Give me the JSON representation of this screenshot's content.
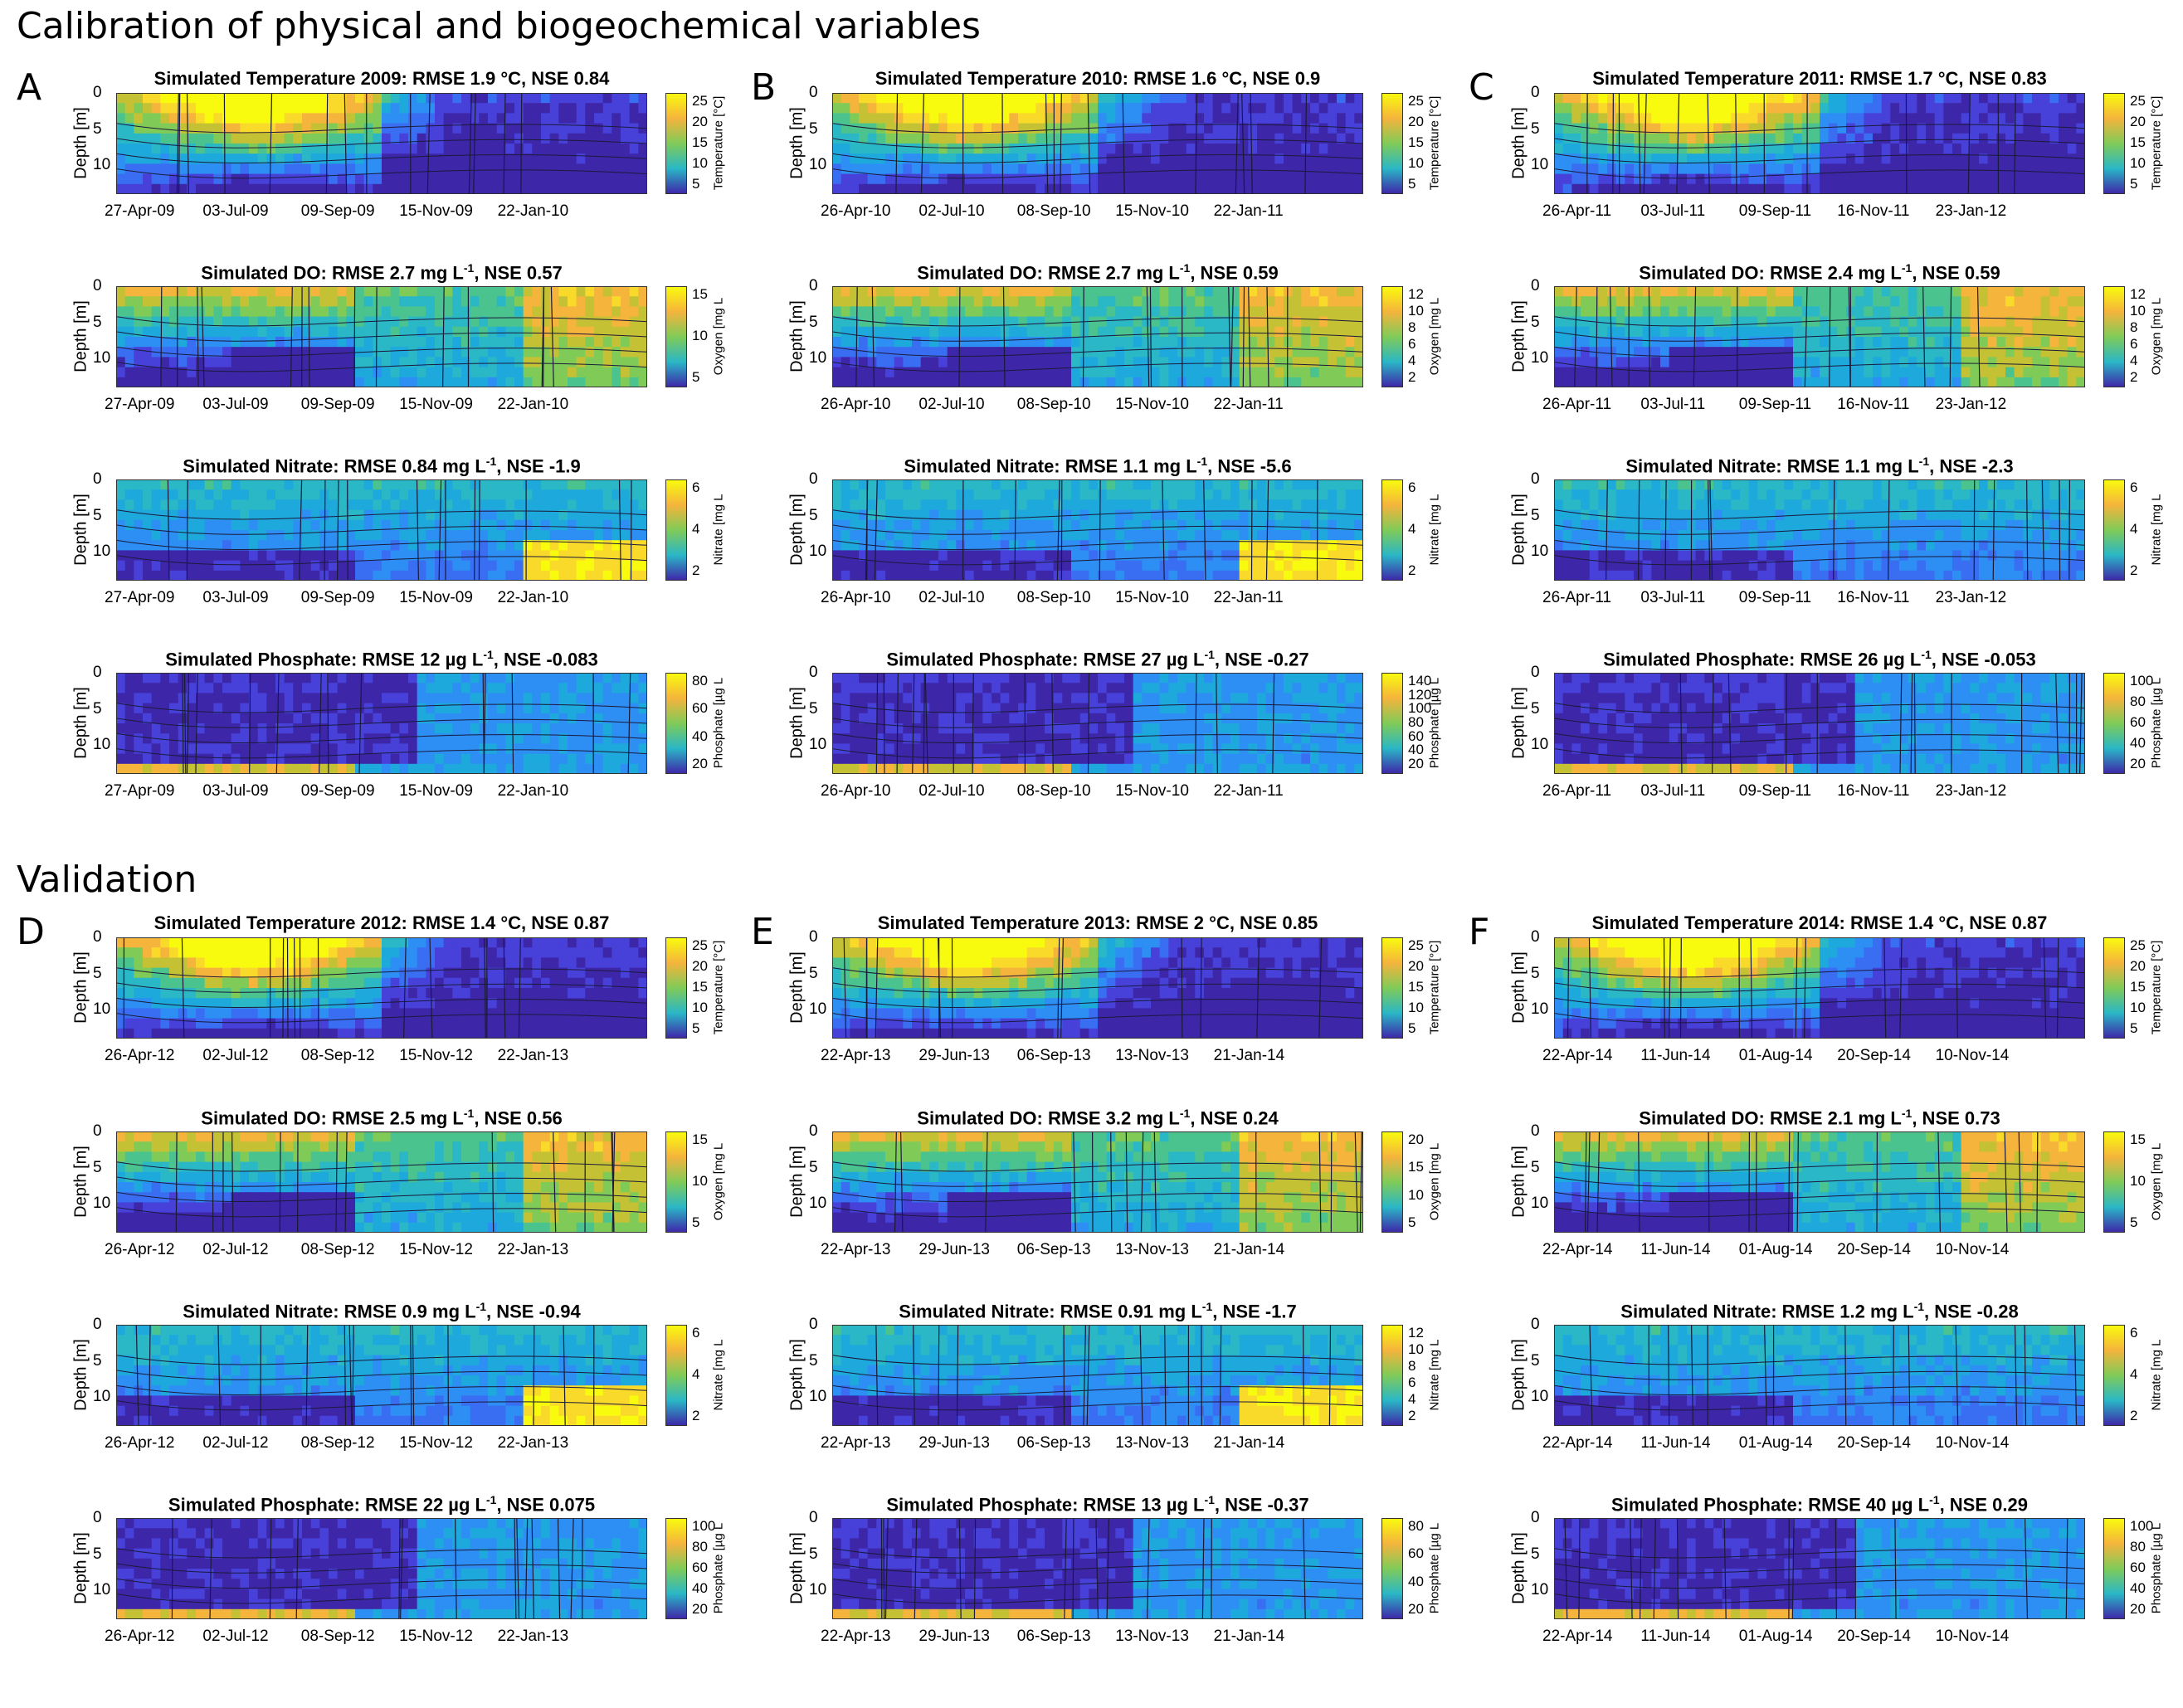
{
  "section_titles": {
    "calibration": "Calibration of physical and biogeochemical variables",
    "validation": "Validation"
  },
  "colors": {
    "low": "#3e26a8",
    "mid": "#2ab7c6",
    "midhigh": "#80cb58",
    "high": "#f5b43c",
    "max": "#f9fb0e"
  },
  "chart_data": [
    {
      "panel": "A",
      "type": "heatmap",
      "year": "2009",
      "ylabel": "Depth [m]",
      "yticks": [
        "0",
        "5",
        "10"
      ],
      "ylim": [
        0,
        14
      ],
      "xticks": [
        "27-Apr-09",
        "03-Jul-09",
        "09-Sep-09",
        "15-Nov-09",
        "22-Jan-10"
      ],
      "subplots": [
        {
          "variable": "Temperature",
          "title": "Simulated Temperature 2009: RMSE 1.9 °C, NSE 0.84",
          "cblabel": "Temperature [°C]",
          "cbticks": [
            "25",
            "20",
            "15",
            "10",
            "5"
          ],
          "profile": "temp"
        },
        {
          "variable": "DO",
          "title_main": "Simulated DO: RMSE 2.7 mg L",
          "title_sup": "-1",
          "title_end": ", NSE 0.57",
          "cblabel": "Oxygen [mg L",
          "cbticks": [
            "15",
            "10",
            "5"
          ],
          "profile": "do"
        },
        {
          "variable": "Nitrate",
          "title_main": "Simulated Nitrate: RMSE 0.84 mg L",
          "title_sup": "-1",
          "title_end": ", NSE -1.9",
          "cblabel": "Nitrate [mg L",
          "cbticks": [
            "6",
            "4",
            "2"
          ],
          "profile": "no3"
        },
        {
          "variable": "Phosphate",
          "title_main": "Simulated Phosphate: RMSE 12 µg L",
          "title_sup": "-1",
          "title_end": ", NSE -0.083",
          "cblabel": "Phosphate [µg L",
          "cbticks": [
            "80",
            "60",
            "40",
            "20"
          ],
          "profile": "po4"
        }
      ]
    },
    {
      "panel": "B",
      "type": "heatmap",
      "year": "2010",
      "ylabel": "Depth [m]",
      "yticks": [
        "0",
        "5",
        "10"
      ],
      "ylim": [
        0,
        14
      ],
      "xticks": [
        "26-Apr-10",
        "02-Jul-10",
        "08-Sep-10",
        "15-Nov-10",
        "22-Jan-11"
      ],
      "subplots": [
        {
          "variable": "Temperature",
          "title": "Simulated Temperature 2010: RMSE 1.6 °C, NSE 0.9",
          "cblabel": "Temperature [°C]",
          "cbticks": [
            "25",
            "20",
            "15",
            "10",
            "5"
          ],
          "profile": "temp"
        },
        {
          "variable": "DO",
          "title_main": "Simulated DO: RMSE 2.7 mg L",
          "title_sup": "-1",
          "title_end": ", NSE 0.59",
          "cblabel": "Oxygen [mg L",
          "cbticks": [
            "12",
            "10",
            "8",
            "6",
            "4",
            "2"
          ],
          "profile": "do"
        },
        {
          "variable": "Nitrate",
          "title_main": "Simulated Nitrate: RMSE 1.1 mg L",
          "title_sup": "-1",
          "title_end": ", NSE -5.6",
          "cblabel": "Nitrate [mg L",
          "cbticks": [
            "6",
            "4",
            "2"
          ],
          "profile": "no3"
        },
        {
          "variable": "Phosphate",
          "title_main": "Simulated Phosphate: RMSE 27 µg L",
          "title_sup": "-1",
          "title_end": ", NSE -0.27",
          "cblabel": "Phosphate [µg L",
          "cbticks": [
            "140",
            "120",
            "100",
            "80",
            "60",
            "40",
            "20"
          ],
          "profile": "po4"
        }
      ]
    },
    {
      "panel": "C",
      "type": "heatmap",
      "year": "2011",
      "ylabel": "Depth [m]",
      "yticks": [
        "0",
        "5",
        "10"
      ],
      "ylim": [
        0,
        14
      ],
      "xticks": [
        "26-Apr-11",
        "03-Jul-11",
        "09-Sep-11",
        "16-Nov-11",
        "23-Jan-12"
      ],
      "subplots": [
        {
          "variable": "Temperature",
          "title": "Simulated Temperature 2011: RMSE 1.7 °C, NSE 0.83",
          "cblabel": "Temperature [°C]",
          "cbticks": [
            "25",
            "20",
            "15",
            "10",
            "5"
          ],
          "profile": "temp"
        },
        {
          "variable": "DO",
          "title_main": "Simulated DO: RMSE 2.4 mg L",
          "title_sup": "-1",
          "title_end": ", NSE 0.59",
          "cblabel": "Oxygen [mg L",
          "cbticks": [
            "12",
            "10",
            "8",
            "6",
            "4",
            "2"
          ],
          "profile": "do"
        },
        {
          "variable": "Nitrate",
          "title_main": "Simulated Nitrate: RMSE 1.1 mg L",
          "title_sup": "-1",
          "title_end": ", NSE -2.3",
          "cblabel": "Nitrate [mg L",
          "cbticks": [
            "6",
            "4",
            "2"
          ],
          "profile": "no3"
        },
        {
          "variable": "Phosphate",
          "title_main": "Simulated Phosphate: RMSE 26 µg L",
          "title_sup": "-1",
          "title_end": ", NSE -0.053",
          "cblabel": "Phosphate [µg L",
          "cbticks": [
            "100",
            "80",
            "60",
            "40",
            "20"
          ],
          "profile": "po4"
        }
      ]
    },
    {
      "panel": "D",
      "type": "heatmap",
      "year": "2012",
      "ylabel": "Depth [m]",
      "yticks": [
        "0",
        "5",
        "10"
      ],
      "ylim": [
        0,
        14
      ],
      "xticks": [
        "26-Apr-12",
        "02-Jul-12",
        "08-Sep-12",
        "15-Nov-12",
        "22-Jan-13"
      ],
      "subplots": [
        {
          "variable": "Temperature",
          "title": "Simulated Temperature 2012: RMSE 1.4 °C, NSE 0.87",
          "cblabel": "Temperature [°C]",
          "cbticks": [
            "25",
            "20",
            "15",
            "10",
            "5"
          ],
          "profile": "temp"
        },
        {
          "variable": "DO",
          "title_main": "Simulated DO: RMSE 2.5 mg L",
          "title_sup": "-1",
          "title_end": ", NSE 0.56",
          "cblabel": "Oxygen [mg L",
          "cbticks": [
            "15",
            "10",
            "5"
          ],
          "profile": "do"
        },
        {
          "variable": "Nitrate",
          "title_main": "Simulated Nitrate: RMSE 0.9 mg L",
          "title_sup": "-1",
          "title_end": ", NSE -0.94",
          "cblabel": "Nitrate [mg L",
          "cbticks": [
            "6",
            "4",
            "2"
          ],
          "profile": "no3"
        },
        {
          "variable": "Phosphate",
          "title_main": "Simulated Phosphate: RMSE 22 µg L",
          "title_sup": "-1",
          "title_end": ", NSE 0.075",
          "cblabel": "Phosphate [µg L",
          "cbticks": [
            "100",
            "80",
            "60",
            "40",
            "20"
          ],
          "profile": "po4"
        }
      ]
    },
    {
      "panel": "E",
      "type": "heatmap",
      "year": "2013",
      "ylabel": "Depth [m]",
      "yticks": [
        "0",
        "5",
        "10"
      ],
      "ylim": [
        0,
        14
      ],
      "xticks": [
        "22-Apr-13",
        "29-Jun-13",
        "06-Sep-13",
        "13-Nov-13",
        "21-Jan-14"
      ],
      "subplots": [
        {
          "variable": "Temperature",
          "title": "Simulated Temperature 2013: RMSE 2 °C, NSE 0.85",
          "cblabel": "Temperature [°C]",
          "cbticks": [
            "25",
            "20",
            "15",
            "10",
            "5"
          ],
          "profile": "temp"
        },
        {
          "variable": "DO",
          "title_main": "Simulated DO: RMSE 3.2 mg L",
          "title_sup": "-1",
          "title_end": ", NSE 0.24",
          "cblabel": "Oxygen [mg L",
          "cbticks": [
            "20",
            "15",
            "10",
            "5"
          ],
          "profile": "do"
        },
        {
          "variable": "Nitrate",
          "title_main": "Simulated Nitrate: RMSE 0.91 mg L",
          "title_sup": "-1",
          "title_end": ", NSE -1.7",
          "cblabel": "Nitrate [mg L",
          "cbticks": [
            "12",
            "10",
            "8",
            "6",
            "4",
            "2"
          ],
          "profile": "no3"
        },
        {
          "variable": "Phosphate",
          "title_main": "Simulated Phosphate: RMSE 13 µg L",
          "title_sup": "-1",
          "title_end": ", NSE -0.37",
          "cblabel": "Phosphate [µg L",
          "cbticks": [
            "80",
            "60",
            "40",
            "20"
          ],
          "profile": "po4"
        }
      ]
    },
    {
      "panel": "F",
      "type": "heatmap",
      "year": "2014",
      "ylabel": "Depth [m]",
      "yticks": [
        "0",
        "5",
        "10"
      ],
      "ylim": [
        0,
        14
      ],
      "xticks": [
        "22-Apr-14",
        "11-Jun-14",
        "01-Aug-14",
        "20-Sep-14",
        "10-Nov-14"
      ],
      "subplots": [
        {
          "variable": "Temperature",
          "title": "Simulated Temperature 2014: RMSE 1.4 °C, NSE 0.87",
          "cblabel": "Temperature [°C]",
          "cbticks": [
            "25",
            "20",
            "15",
            "10",
            "5"
          ],
          "profile": "temp"
        },
        {
          "variable": "DO",
          "title_main": "Simulated DO: RMSE 2.1 mg L",
          "title_sup": "-1",
          "title_end": ", NSE 0.73",
          "cblabel": "Oxygen [mg L",
          "cbticks": [
            "15",
            "10",
            "5"
          ],
          "profile": "do"
        },
        {
          "variable": "Nitrate",
          "title_main": "Simulated Nitrate: RMSE 1.2 mg L",
          "title_sup": "-1",
          "title_end": ", NSE -0.28",
          "cblabel": "Nitrate [mg L",
          "cbticks": [
            "6",
            "4",
            "2"
          ],
          "profile": "no3"
        },
        {
          "variable": "Phosphate",
          "title_main": "Simulated Phosphate: RMSE 40 µg L",
          "title_sup": "-1",
          "title_end": ", NSE 0.29",
          "cblabel": "Phosphate [µg L",
          "cbticks": [
            "100",
            "80",
            "60",
            "40",
            "20"
          ],
          "profile": "po4"
        }
      ]
    }
  ]
}
